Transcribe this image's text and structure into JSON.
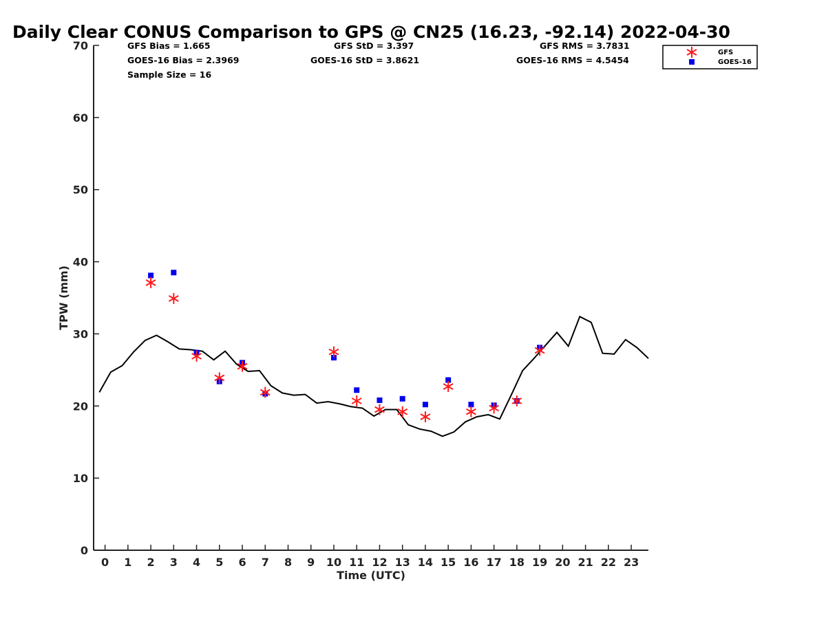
{
  "chart_data": {
    "type": "scatter",
    "title": "Daily Clear CONUS Comparison to GPS @ CN25 (16.23, -92.14) 2022-04-30",
    "xlabel": "Time (UTC)",
    "ylabel": "TPW (mm)",
    "xlim": [
      -0.5,
      23.75
    ],
    "ylim": [
      0,
      70
    ],
    "x_ticks": [
      0,
      1,
      2,
      3,
      4,
      5,
      6,
      7,
      8,
      9,
      10,
      11,
      12,
      13,
      14,
      15,
      16,
      17,
      18,
      19,
      20,
      21,
      22,
      23
    ],
    "y_ticks": [
      0,
      10,
      20,
      30,
      40,
      50,
      60,
      70
    ],
    "grid": false,
    "legend_position": "top-right",
    "stats": {
      "gfs_bias": "GFS Bias = 1.665",
      "goes_bias": "GOES-16 Bias = 2.3969",
      "sample_size": "Sample Size = 16",
      "gfs_std": "GFS StD = 3.397",
      "goes_std": "GOES-16 StD = 3.8621",
      "gfs_rms": "GFS RMS = 3.7831",
      "goes_rms": "GOES-16 RMS = 4.5454"
    },
    "series": [
      {
        "type": "line",
        "color": "#000000",
        "x": [
          -0.25,
          0.25,
          0.75,
          1.25,
          1.75,
          2.25,
          2.75,
          3.25,
          3.75,
          4.25,
          4.75,
          5.25,
          5.75,
          6.25,
          6.75,
          7.25,
          7.75,
          8.25,
          8.75,
          9.25,
          9.75,
          10.25,
          10.75,
          11.25,
          11.75,
          12.25,
          12.75,
          13.25,
          13.75,
          14.25,
          14.75,
          15.25,
          15.75,
          16.25,
          16.75,
          17.25,
          17.75,
          18.25,
          18.75,
          19.25,
          19.75,
          20.25,
          20.75,
          21.25,
          21.75,
          22.25,
          22.75,
          23.25,
          23.75
        ],
        "values": [
          21.9,
          24.7,
          25.6,
          27.5,
          29.1,
          29.8,
          28.9,
          27.9,
          27.8,
          27.6,
          26.4,
          27.6,
          25.8,
          24.8,
          24.9,
          22.8,
          21.8,
          21.5,
          21.6,
          20.4,
          20.6,
          20.3,
          19.9,
          19.7,
          18.6,
          19.5,
          19.5,
          17.4,
          16.8,
          16.5,
          15.8,
          16.4,
          17.8,
          18.5,
          18.8,
          18.2,
          21.5,
          24.9,
          26.6,
          28.4,
          30.2,
          28.3,
          32.4,
          31.6,
          27.3,
          27.2,
          29.2,
          28.1,
          26.6
        ]
      },
      {
        "name": "GFS",
        "type": "scatter",
        "marker": "asterisk",
        "color": "#ff1a1a",
        "x": [
          2,
          3,
          4,
          5,
          6,
          7,
          10,
          11,
          12,
          13,
          14,
          15,
          16,
          17,
          18,
          19
        ],
        "values": [
          37.1,
          34.9,
          26.9,
          23.9,
          25.5,
          21.9,
          27.5,
          20.7,
          19.5,
          19.2,
          18.5,
          22.7,
          19.2,
          19.7,
          20.7,
          27.7
        ]
      },
      {
        "name": "GOES-16",
        "type": "scatter",
        "marker": "square",
        "color": "#0000ee",
        "x": [
          2,
          3,
          4,
          5,
          6,
          7,
          10,
          11,
          12,
          13,
          14,
          15,
          16,
          17,
          18,
          19
        ],
        "values": [
          38.1,
          38.5,
          27.4,
          23.4,
          26.0,
          21.7,
          26.7,
          22.2,
          20.8,
          21.0,
          20.2,
          23.6,
          20.2,
          20.1,
          20.7,
          28.1
        ]
      }
    ]
  }
}
